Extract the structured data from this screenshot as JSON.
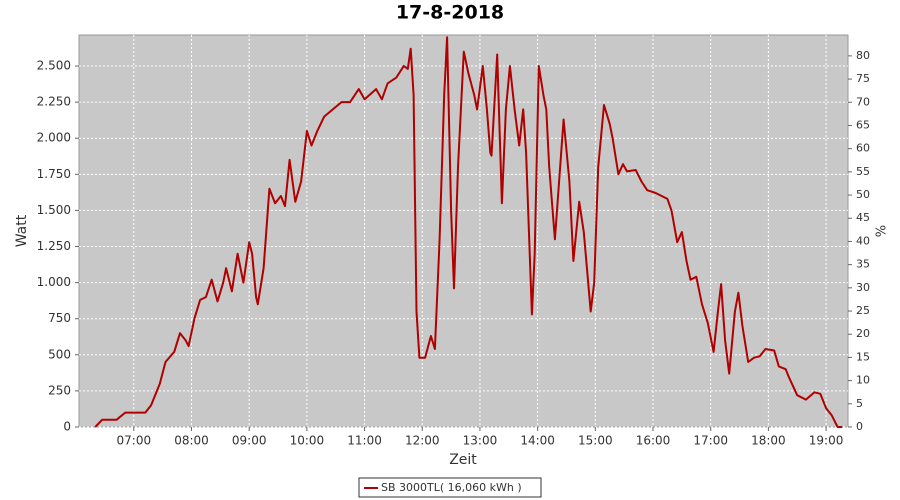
{
  "chart_data": {
    "type": "line",
    "title": "17-8-2018",
    "x_label": "Zeit",
    "y_label": "Watt",
    "y2_label": "%",
    "x": [
      6.33,
      6.45,
      6.7,
      6.85,
      7.2,
      7.3,
      7.45,
      7.55,
      7.7,
      7.8,
      7.9,
      7.95,
      8.05,
      8.15,
      8.25,
      8.35,
      8.45,
      8.55,
      8.6,
      8.7,
      8.8,
      8.85,
      8.9,
      9.0,
      9.05,
      9.12,
      9.15,
      9.25,
      9.35,
      9.45,
      9.55,
      9.62,
      9.7,
      9.8,
      9.9,
      10.0,
      10.08,
      10.18,
      10.3,
      10.45,
      10.6,
      10.75,
      10.9,
      11.0,
      11.2,
      11.3,
      11.4,
      11.55,
      11.68,
      11.75,
      11.8,
      11.85,
      11.9,
      11.95,
      12.05,
      12.15,
      12.22,
      12.3,
      12.38,
      12.43,
      12.5,
      12.55,
      12.62,
      12.72,
      12.8,
      12.9,
      12.95,
      13.05,
      13.12,
      13.18,
      13.2,
      13.3,
      13.38,
      13.45,
      13.52,
      13.6,
      13.68,
      13.75,
      13.8,
      13.9,
      13.95,
      14.02,
      14.1,
      14.15,
      14.2,
      14.3,
      14.45,
      14.55,
      14.62,
      14.72,
      14.8,
      14.92,
      14.98,
      15.05,
      15.15,
      15.25,
      15.3,
      15.4,
      15.48,
      15.55,
      15.7,
      15.8,
      15.9,
      16.05,
      16.15,
      16.25,
      16.32,
      16.42,
      16.5,
      16.58,
      16.65,
      16.75,
      16.85,
      16.95,
      17.05,
      17.12,
      17.18,
      17.25,
      17.32,
      17.42,
      17.48,
      17.55,
      17.65,
      17.75,
      17.85,
      17.95,
      18.1,
      18.18,
      18.3,
      18.35,
      18.5,
      18.65,
      18.8,
      18.9,
      19.0,
      19.1,
      19.2,
      19.28
    ],
    "series": [
      {
        "name": "SB 3000TL( 16,060 kWh )",
        "color": "#b00000",
        "values": [
          0,
          50,
          50,
          100,
          100,
          150,
          300,
          450,
          520,
          650,
          600,
          560,
          750,
          880,
          900,
          1020,
          870,
          1000,
          1100,
          940,
          1200,
          1100,
          1000,
          1280,
          1200,
          900,
          850,
          1100,
          1650,
          1550,
          1600,
          1530,
          1850,
          1560,
          1700,
          2050,
          1950,
          2050,
          2150,
          2200,
          2250,
          2250,
          2340,
          2270,
          2340,
          2270,
          2380,
          2420,
          2500,
          2480,
          2620,
          2300,
          800,
          480,
          480,
          630,
          540,
          1300,
          2300,
          2700,
          1500,
          960,
          1800,
          2600,
          2450,
          2300,
          2200,
          2500,
          2200,
          1900,
          1880,
          2580,
          1550,
          2200,
          2500,
          2200,
          1950,
          2200,
          1900,
          780,
          1200,
          2500,
          2300,
          2200,
          1800,
          1300,
          2130,
          1700,
          1150,
          1560,
          1350,
          800,
          1000,
          1800,
          2230,
          2100,
          2000,
          1750,
          1820,
          1770,
          1780,
          1700,
          1640,
          1620,
          1600,
          1580,
          1500,
          1280,
          1350,
          1150,
          1020,
          1040,
          850,
          720,
          520,
          780,
          990,
          600,
          370,
          800,
          930,
          700,
          450,
          480,
          490,
          540,
          530,
          420,
          400,
          350,
          220,
          190,
          240,
          230,
          130,
          80,
          0,
          0
        ]
      }
    ],
    "xlim": [
      6.05,
      19.38
    ],
    "xticks": [
      {
        "value": 7,
        "label": "07:00"
      },
      {
        "value": 8,
        "label": "08:00"
      },
      {
        "value": 9,
        "label": "09:00"
      },
      {
        "value": 10,
        "label": "10:00"
      },
      {
        "value": 11,
        "label": "11:00"
      },
      {
        "value": 12,
        "label": "12:00"
      },
      {
        "value": 13,
        "label": "13:00"
      },
      {
        "value": 14,
        "label": "14:00"
      },
      {
        "value": 15,
        "label": "15:00"
      },
      {
        "value": 16,
        "label": "16:00"
      },
      {
        "value": 17,
        "label": "17:00"
      },
      {
        "value": 18,
        "label": "18:00"
      },
      {
        "value": 19,
        "label": "19:00"
      }
    ],
    "ylim": [
      0,
      2715
    ],
    "yticks": [
      0,
      250,
      500,
      750,
      {
        "value": 1000,
        "label": "1.000"
      },
      {
        "value": 1250,
        "label": "1.250"
      },
      {
        "value": 1500,
        "label": "1.500"
      },
      {
        "value": 1750,
        "label": "1.750"
      },
      {
        "value": 2000,
        "label": "2.000"
      },
      {
        "value": 2250,
        "label": "2.250"
      },
      {
        "value": 2500,
        "label": "2.500"
      }
    ],
    "y2lim": [
      0,
      84.5
    ],
    "y2ticks": [
      0,
      5,
      10,
      15,
      20,
      25,
      30,
      35,
      40,
      45,
      50,
      55,
      60,
      65,
      70,
      75,
      80
    ],
    "grid": true
  }
}
